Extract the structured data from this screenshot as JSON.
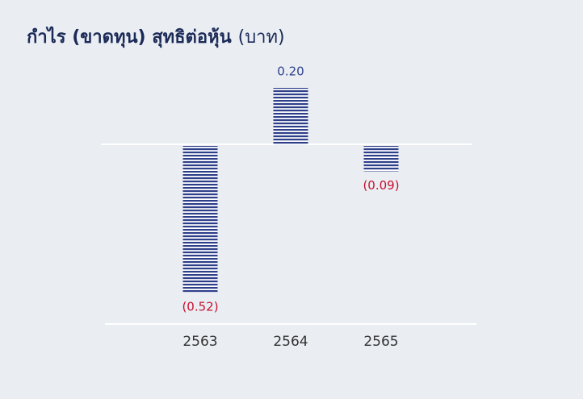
{
  "chart_data": {
    "type": "bar",
    "title": "กำไร (ขาดทุน) สุทธิต่อหุ้น",
    "unit": "(บาท)",
    "categories": [
      "2563",
      "2564",
      "2565"
    ],
    "values": [
      -0.52,
      0.2,
      -0.09
    ],
    "value_labels": [
      "(0.52)",
      "0.20",
      "(0.09)"
    ],
    "color": "#2e3f8a",
    "positive_label_color": "#2e3f8a",
    "negative_label_color": "#c8102e"
  }
}
